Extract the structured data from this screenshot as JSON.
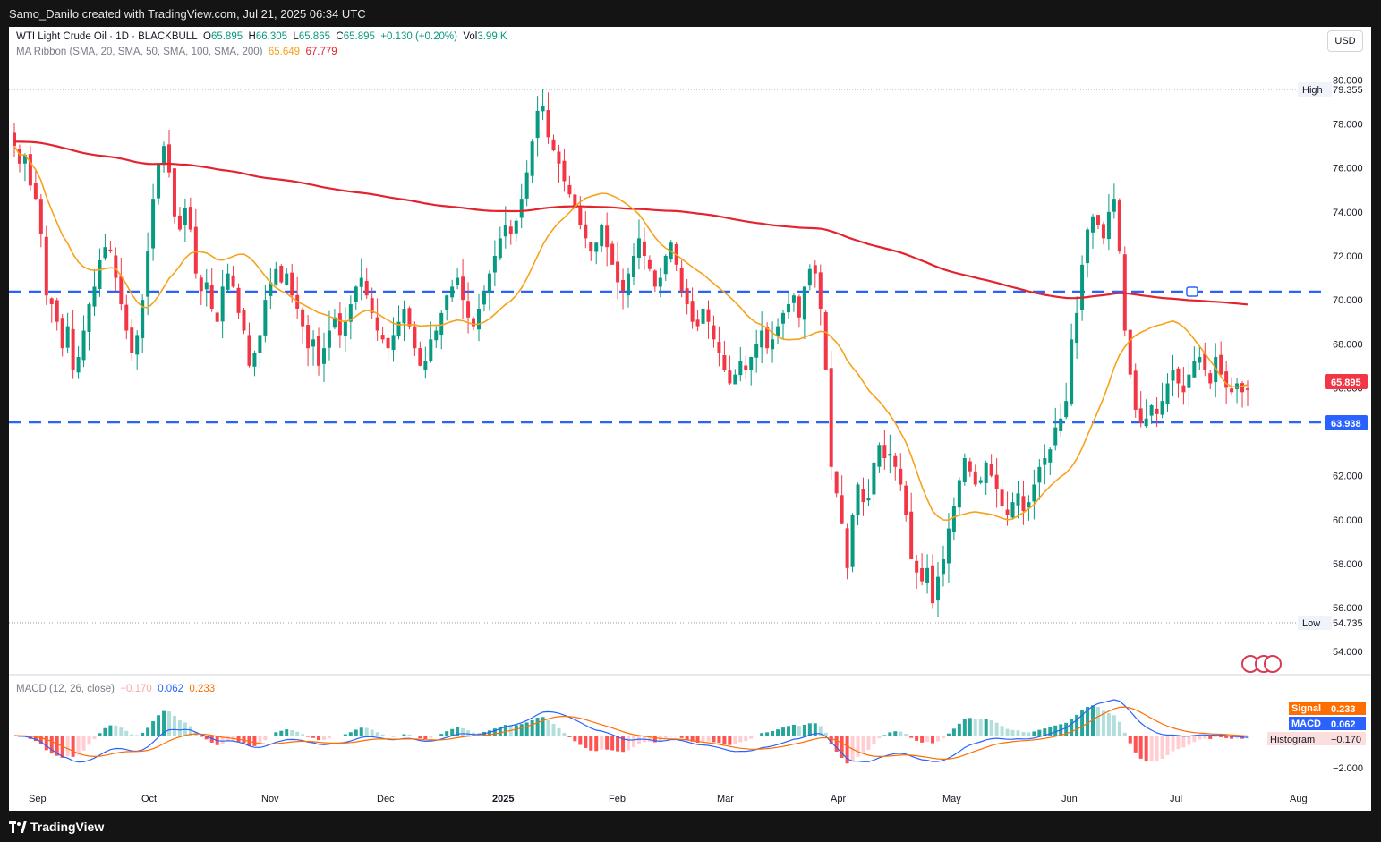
{
  "header": {
    "text": "Samo_Danilo created with TradingView.com, Jul 21, 2025 06:34 UTC"
  },
  "footer": {
    "brand": "TradingView"
  },
  "currency_button": "USD",
  "legend": {
    "symbol": "WTI Light Crude Oil · 1D · BLACKBULL",
    "o_label": "O",
    "o": "65.895",
    "h_label": "H",
    "h": "66.305",
    "l_label": "L",
    "l": "65.865",
    "c_label": "C",
    "c": "65.895",
    "change": "+0.130 (+0.20%)",
    "vol_label": "Vol",
    "vol": "3.99 K",
    "ma_label": "MA Ribbon (SMA, 20, SMA, 50, SMA, 100, SMA, 200)",
    "ma_v1": "65.649",
    "ma_v2": "67.779",
    "macd_label": "MACD (12, 26, close)",
    "macd_hist": "−0.170",
    "macd_v": "0.062",
    "macd_sig": "0.233"
  },
  "colors": {
    "up": "#089981",
    "down": "#f23645",
    "ma20": "#f7a21b",
    "ma200": "#e5232e",
    "level": "#2962ff",
    "macd": "#2962ff",
    "signal": "#ff6d00"
  },
  "price_axis": {
    "ticks": [
      "80.000",
      "78.000",
      "76.000",
      "74.000",
      "72.000",
      "70.000",
      "68.000",
      "66.000",
      "62.000",
      "60.000",
      "58.000",
      "56.000",
      "54.000"
    ]
  },
  "macd_axis": {
    "ticks": [
      "−2.000"
    ]
  },
  "badges": {
    "high_label": "High",
    "high_value": "79.355",
    "low_label": "Low",
    "low_value": "54.735",
    "last_price": "65.895",
    "support": "63.938",
    "signal_label": "Signal",
    "signal_value": "0.233",
    "macd_label": "MACD",
    "macd_value": "0.062",
    "hist_label": "Histogram",
    "hist_value": "−0.170"
  },
  "time_axis": {
    "labels": [
      "Sep",
      "Oct",
      "Nov",
      "Dec",
      "2025",
      "Feb",
      "Mar",
      "Apr",
      "May",
      "Jun",
      "Jul",
      "Aug"
    ]
  },
  "chart_data": {
    "type": "candlestick",
    "title": "WTI Light Crude Oil",
    "timeframe": "1D",
    "ylim": [
      53.6,
      81.2
    ],
    "dates_range": [
      "2024-08-26",
      "2025-07-21"
    ],
    "levels": [
      70.0,
      63.938
    ],
    "high": 79.355,
    "low": 54.735,
    "candles_close": [
      77.0,
      76.2,
      76.6,
      75.2,
      74.6,
      73.0,
      70.2,
      69.8,
      69.0,
      67.8,
      68.8,
      66.8,
      67.4,
      68.6,
      69.8,
      70.6,
      71.8,
      72.4,
      72.2,
      71.0,
      69.8,
      68.6,
      67.6,
      68.4,
      70.0,
      72.2,
      74.6,
      76.2,
      77.0,
      75.8,
      73.8,
      73.2,
      74.2,
      73.2,
      71.2,
      70.4,
      70.8,
      69.6,
      69.0,
      70.6,
      71.2,
      70.6,
      69.4,
      68.6,
      67.0,
      67.6,
      68.4,
      70.0,
      70.8,
      71.4,
      70.8,
      71.2,
      70.2,
      69.6,
      68.8,
      67.8,
      68.2,
      67.0,
      67.8,
      68.6,
      69.2,
      68.4,
      69.0,
      69.8,
      70.6,
      71.0,
      70.2,
      69.4,
      68.6,
      68.2,
      67.8,
      68.4,
      69.0,
      69.6,
      68.8,
      67.8,
      67.0,
      67.2,
      68.2,
      68.6,
      69.4,
      70.2,
      70.6,
      71.0,
      70.0,
      69.2,
      68.8,
      69.6,
      70.4,
      71.2,
      72.0,
      72.8,
      73.4,
      73.0,
      73.6,
      74.6,
      75.8,
      77.2,
      78.6,
      78.8,
      77.4,
      76.8,
      76.2,
      75.4,
      74.8,
      74.2,
      73.4,
      72.8,
      72.2,
      72.6,
      73.4,
      72.4,
      71.6,
      70.8,
      70.4,
      71.2,
      72.0,
      72.8,
      72.0,
      71.4,
      70.6,
      71.0,
      72.0,
      72.6,
      71.6,
      70.4,
      69.8,
      69.0,
      68.8,
      69.6,
      69.0,
      68.2,
      67.6,
      66.8,
      66.2,
      66.6,
      67.2,
      66.8,
      67.4,
      68.0,
      68.6,
      67.8,
      68.2,
      68.8,
      69.4,
      69.8,
      70.2,
      69.2,
      70.6,
      71.4,
      71.2,
      69.6,
      66.8,
      62.4,
      61.2,
      59.8,
      57.8,
      60.2,
      61.6,
      60.8,
      61.0,
      62.6,
      63.4,
      62.8,
      63.0,
      62.4,
      61.6,
      60.2,
      58.2,
      57.6,
      57.2,
      57.8,
      56.2,
      57.4,
      58.2,
      59.6,
      60.6,
      61.8,
      62.8,
      62.2,
      61.6,
      61.8,
      62.6,
      62.0,
      61.4,
      60.6,
      60.2,
      60.8,
      61.2,
      60.4,
      60.8,
      61.6,
      62.4,
      62.8,
      63.2,
      64.2,
      64.6,
      65.4,
      68.2,
      69.4,
      71.6,
      73.2,
      73.8,
      73.4,
      72.8,
      74.0,
      74.6,
      72.2,
      68.6,
      66.6,
      65.0,
      64.4,
      64.6,
      65.2,
      64.8,
      65.4,
      66.2,
      66.8,
      66.2,
      65.8,
      66.6,
      67.2,
      67.4,
      66.8,
      66.2,
      67.4,
      66.6,
      66.0,
      65.8,
      66.2,
      65.8,
      65.9
    ],
    "ma20_last": 65.649,
    "ma200_last": 67.779,
    "macd": {
      "macd_last": 0.062,
      "signal_last": 0.233,
      "histogram_last": -0.17
    }
  }
}
